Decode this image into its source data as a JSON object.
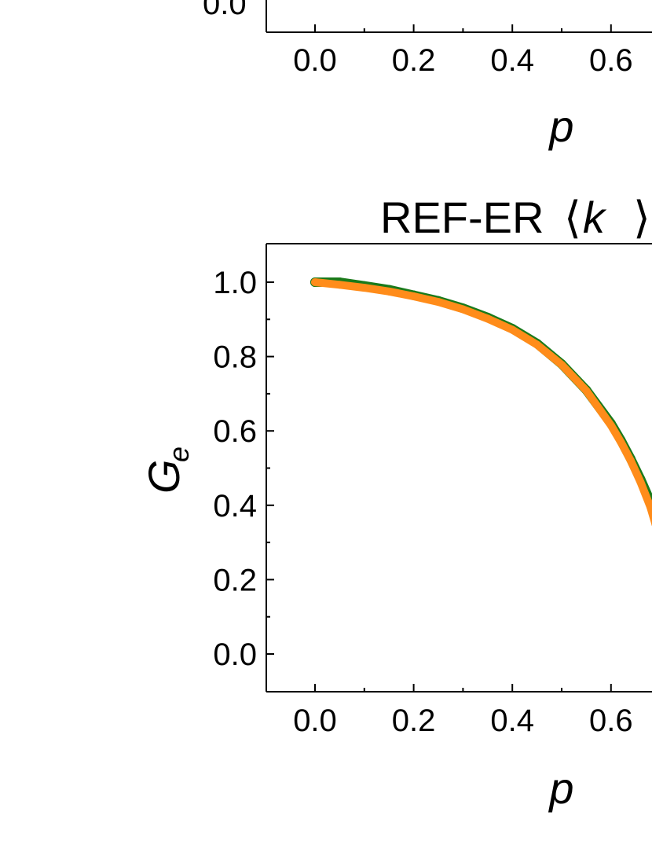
{
  "chart_data": [
    {
      "type": "line",
      "title": "",
      "xlabel": "p",
      "ylabel": "",
      "xlim": [
        -0.1,
        0.75
      ],
      "x_ticks": [
        "0.0",
        "0.2",
        "0.4",
        "0.6"
      ],
      "y_ticks": [
        "0.0"
      ],
      "series": []
    },
    {
      "type": "line",
      "title": "REF-ER ⟨ k ⟩",
      "title_text": "REF-ER",
      "title_bracket_left": "⟨",
      "title_var": "k",
      "title_bracket_right": "⟩",
      "xlabel": "p",
      "ylabel_main": "G",
      "ylabel_sub": "e",
      "xlim": [
        -0.1,
        0.75
      ],
      "ylim": [
        -0.1,
        1.1
      ],
      "x_ticks": [
        "0.0",
        "0.2",
        "0.4",
        "0.6"
      ],
      "y_ticks": [
        "0.0",
        "0.2",
        "0.4",
        "0.6",
        "0.8",
        "1.0"
      ],
      "colors": {
        "green": "#1a7a1a",
        "orange": "#ff8c1a"
      },
      "series": [
        {
          "color": "green",
          "x": [
            0.0,
            0.05,
            0.1,
            0.15,
            0.2,
            0.25,
            0.3,
            0.35,
            0.4,
            0.45,
            0.5,
            0.55,
            0.6,
            0.62,
            0.64,
            0.66,
            0.68,
            0.69
          ],
          "y": [
            1.0,
            1.0,
            0.99,
            0.98,
            0.965,
            0.95,
            0.93,
            0.905,
            0.875,
            0.835,
            0.78,
            0.71,
            0.62,
            0.575,
            0.525,
            0.47,
            0.41,
            0.37
          ]
        },
        {
          "color": "orange",
          "x": [
            0.0,
            0.05,
            0.1,
            0.15,
            0.2,
            0.25,
            0.3,
            0.35,
            0.4,
            0.45,
            0.5,
            0.55,
            0.6,
            0.62,
            0.64,
            0.66,
            0.68,
            0.69
          ],
          "y": [
            1.0,
            0.993,
            0.985,
            0.975,
            0.962,
            0.947,
            0.927,
            0.902,
            0.872,
            0.832,
            0.778,
            0.708,
            0.615,
            0.57,
            0.52,
            0.462,
            0.395,
            0.35
          ]
        }
      ]
    }
  ]
}
